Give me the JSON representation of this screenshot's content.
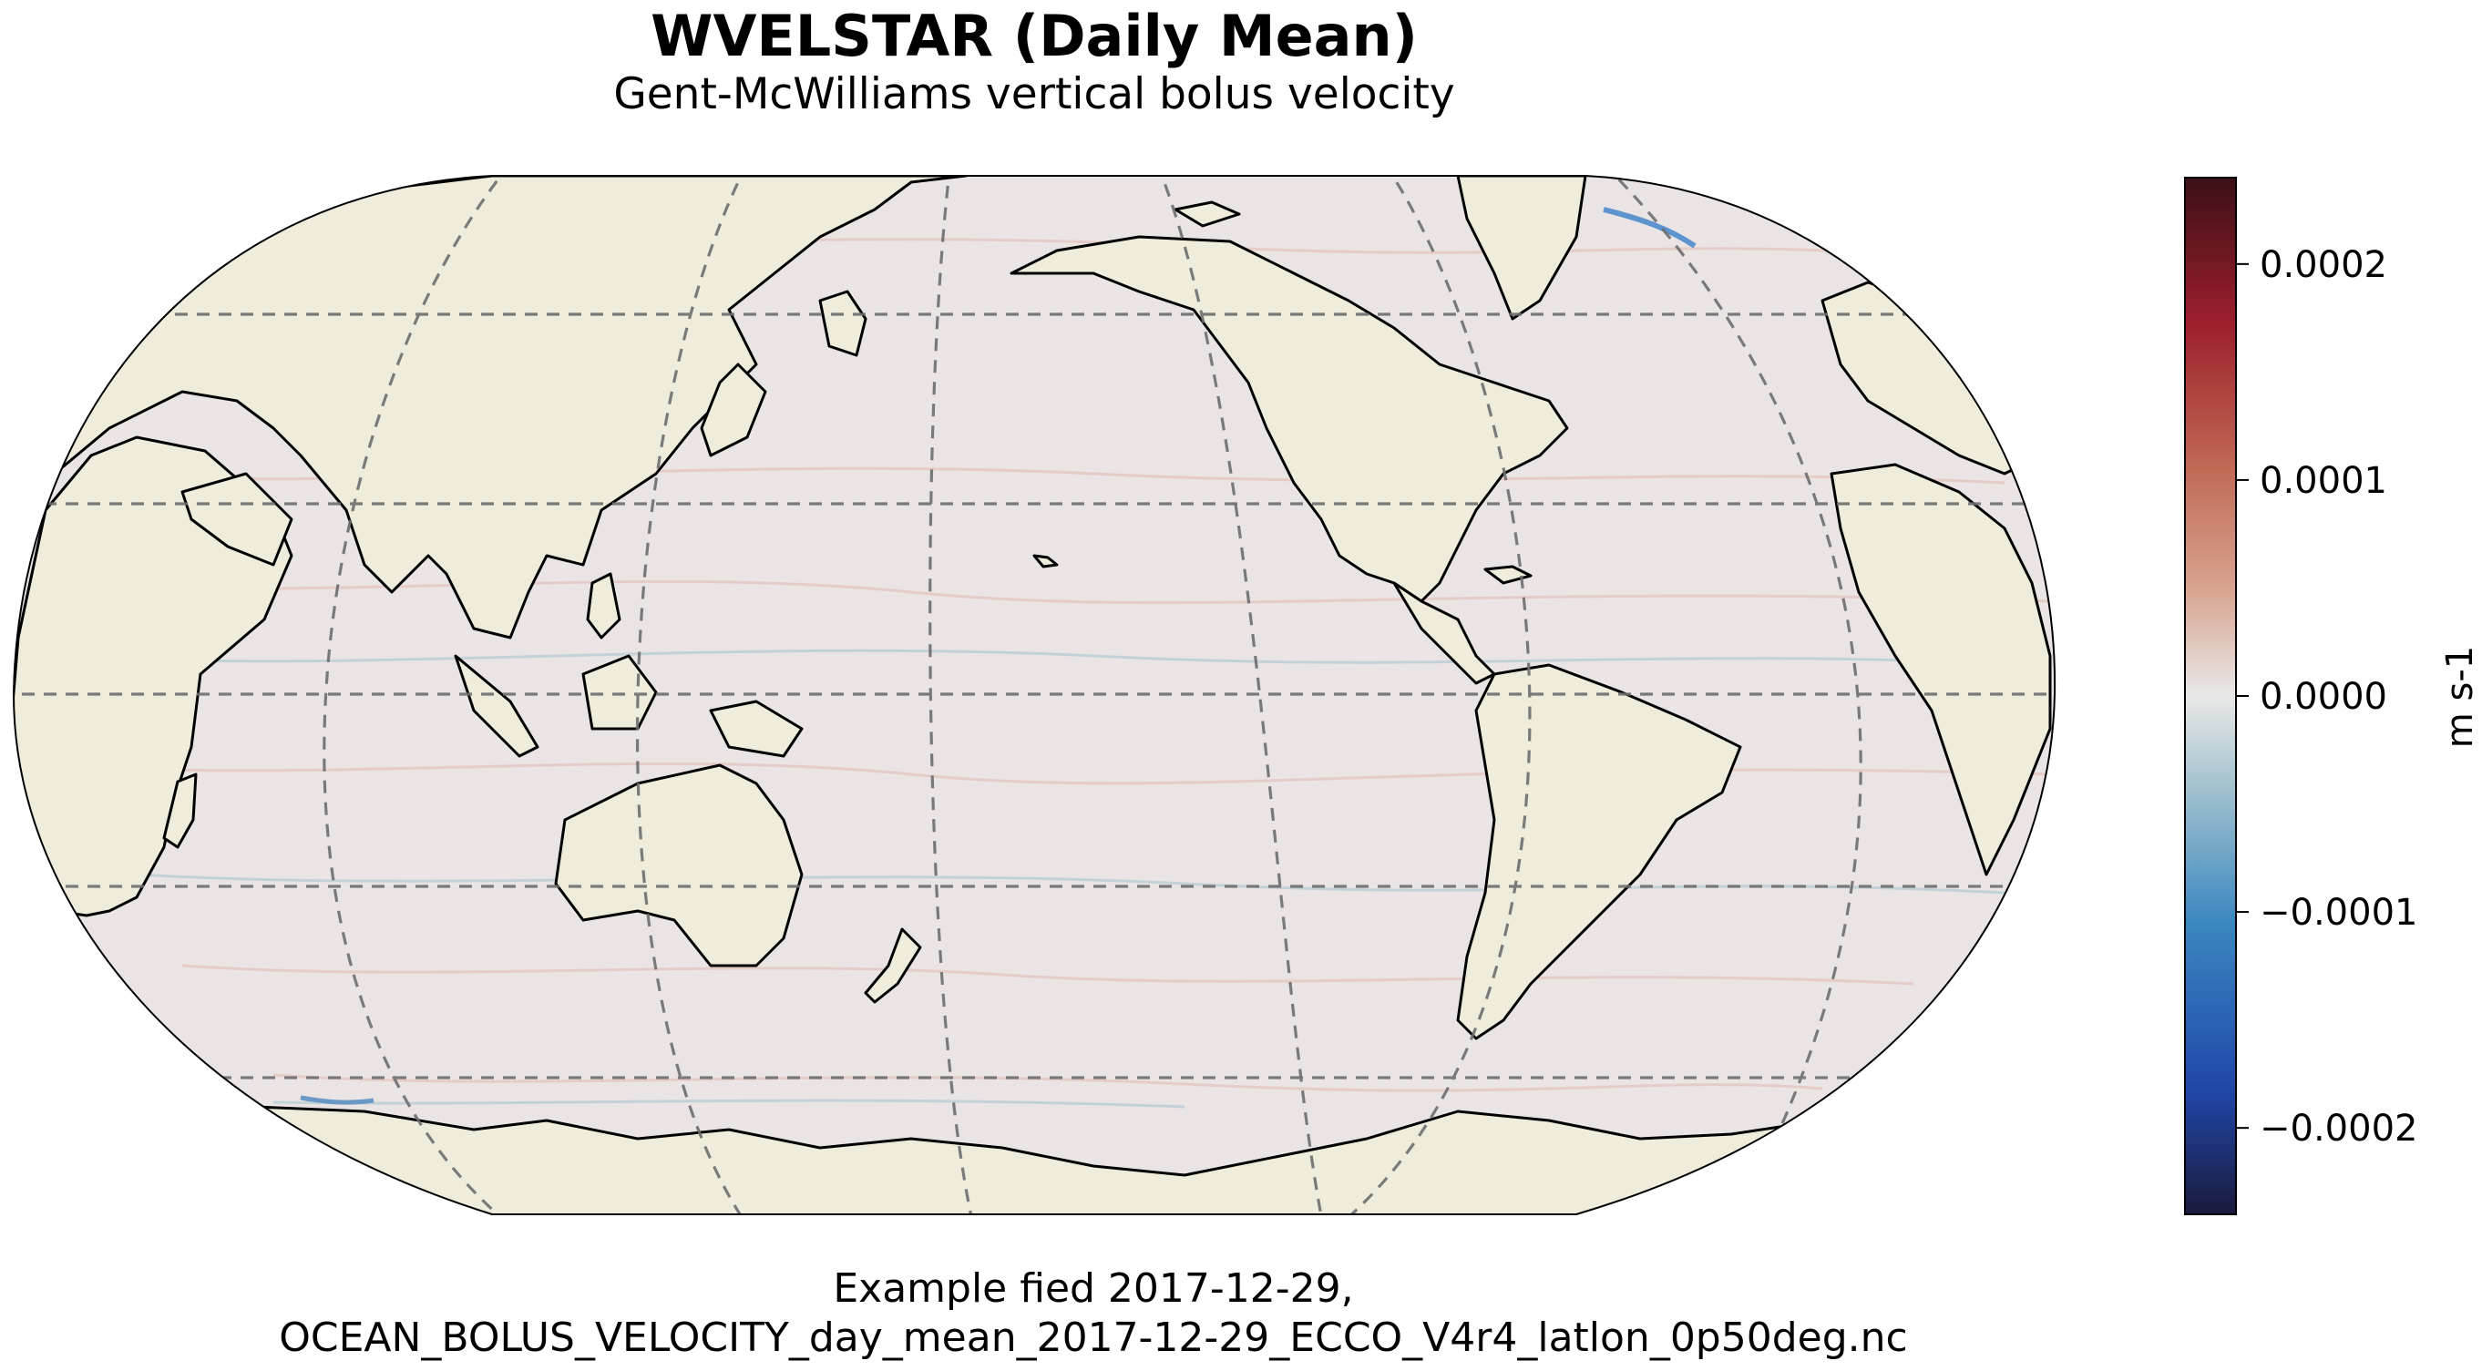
{
  "title": "WVELSTAR (Daily Mean)",
  "subtitle": "Gent-McWilliams vertical bolus velocity",
  "caption": {
    "line1": "Example fied 2017-12-29,",
    "line2": "OCEAN_BOLUS_VELOCITY_day_mean_2017-12-29_ECCO_V4r4_latlon_0p50deg.nc"
  },
  "map": {
    "projection": "robinson",
    "central_longitude": "Pacific-centred",
    "ocean_fill": "#ebe4e4",
    "land_fill": "#efecdc",
    "coastline": "#000000",
    "gridlines": "dashed grey"
  },
  "colorbar": {
    "label": "m s-1",
    "colormap": "diverging dark-blue → blue → white → red → dark-red",
    "colors": [
      "#1a1a3c",
      "#2047a8",
      "#3a87c0",
      "#a9c6d0",
      "#e9e8e8",
      "#d9a592",
      "#c06a54",
      "#9c1f2c",
      "#3b1016"
    ],
    "range": [
      -0.00024,
      0.00024
    ],
    "ticks": [
      {
        "value": 0.0002,
        "label": "0.0002"
      },
      {
        "value": 0.0001,
        "label": "0.0001"
      },
      {
        "value": 0.0,
        "label": "0.0000"
      },
      {
        "value": -0.0001,
        "label": "−0.0001"
      },
      {
        "value": -0.0002,
        "label": "−0.0002"
      }
    ]
  }
}
